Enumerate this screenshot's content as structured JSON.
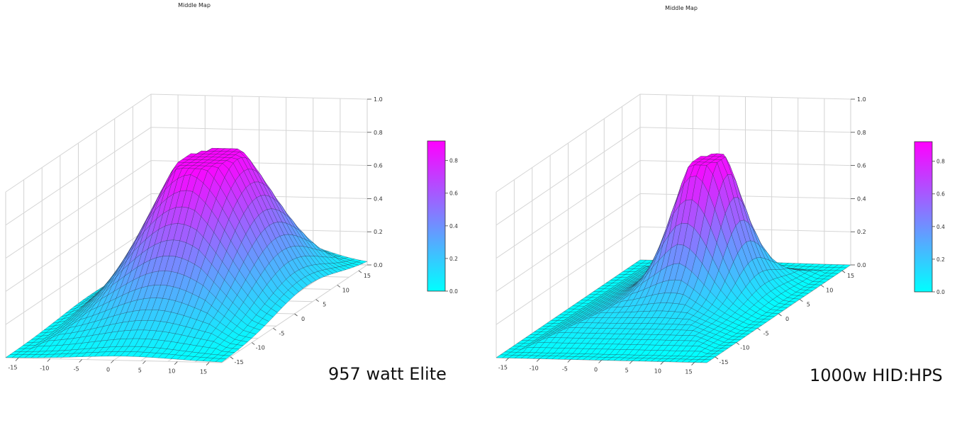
{
  "chart_data": [
    {
      "type": "surface",
      "title": "Middle Map",
      "caption": "957 watt Elite",
      "colormap": {
        "low": "#00ffff",
        "high": "#ff00ff"
      },
      "xlim": [
        -17,
        17
      ],
      "ylim": [
        -17,
        17
      ],
      "zlim": [
        0,
        1.0
      ],
      "x_ticks": [
        "-15",
        "-10",
        "-5",
        "0",
        "5",
        "10",
        "15"
      ],
      "y_ticks": [
        "15",
        "10",
        "5",
        "0",
        "-5",
        "-10",
        "-15"
      ],
      "z_ticks": [
        "0.0",
        "0.2",
        "0.4",
        "0.6",
        "0.8",
        "1.0"
      ],
      "colorbar_ticks": [
        "0.0",
        "0.2",
        "0.4",
        "0.6",
        "0.8"
      ],
      "surface": {
        "peak": 0.88,
        "peak_x": 2,
        "peak_y": 3,
        "spread": 7.5,
        "plateau": 0.18
      }
    },
    {
      "type": "surface",
      "title": "Middle Map",
      "caption": "1000w HID:HPS",
      "colormap": {
        "low": "#00ffff",
        "high": "#ff00ff"
      },
      "xlim": [
        -17,
        17
      ],
      "ylim": [
        -17,
        17
      ],
      "zlim": [
        0,
        1.0
      ],
      "x_ticks": [
        "-15",
        "-10",
        "-5",
        "0",
        "5",
        "10",
        "15"
      ],
      "y_ticks": [
        "15",
        "10",
        "5",
        "0",
        "-5",
        "-10",
        "-15"
      ],
      "z_ticks": [
        "0.0",
        "0.2",
        "0.4",
        "0.6",
        "0.8",
        "1.0"
      ],
      "colorbar_ticks": [
        "0.0",
        "0.2",
        "0.4",
        "0.6",
        "0.8"
      ],
      "surface": {
        "peak": 0.85,
        "peak_x": 3,
        "peak_y": 4,
        "spread": 4.0,
        "plateau": 0.2
      }
    }
  ]
}
